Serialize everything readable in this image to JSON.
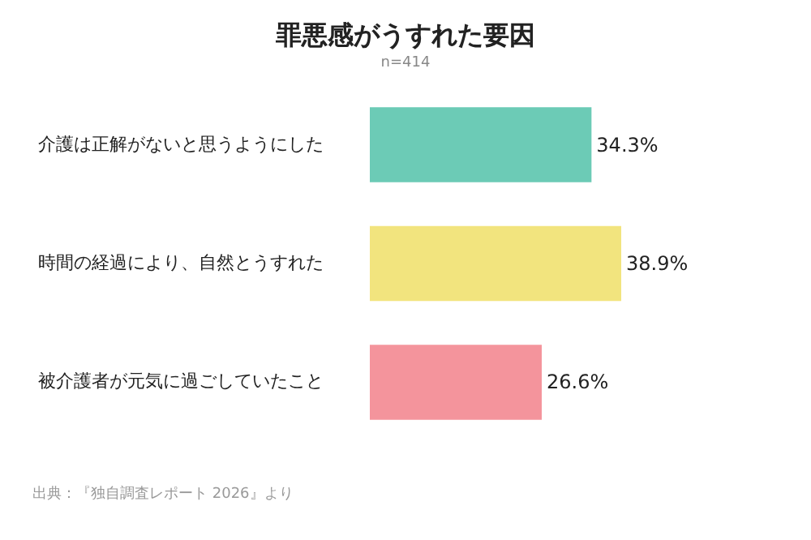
{
  "chart_data": {
    "type": "bar",
    "orientation": "horizontal",
    "title": "罪悪感がうすれた要因",
    "subtitle": "n=414",
    "categories": [
      "介護は正解がないと思うようにした",
      "時間の経過により、自然とうすれた",
      "被介護者が元気に過ごしていたこと"
    ],
    "values": [
      34.3,
      38.9,
      26.6
    ],
    "colors": [
      "#6ccbb6",
      "#f2e47e",
      "#f4949c"
    ],
    "value_labels": [
      "34.3%",
      "38.9%",
      "26.6%"
    ],
    "annotations": [
      "出典：『独自調査レポート 2026』より"
    ]
  }
}
